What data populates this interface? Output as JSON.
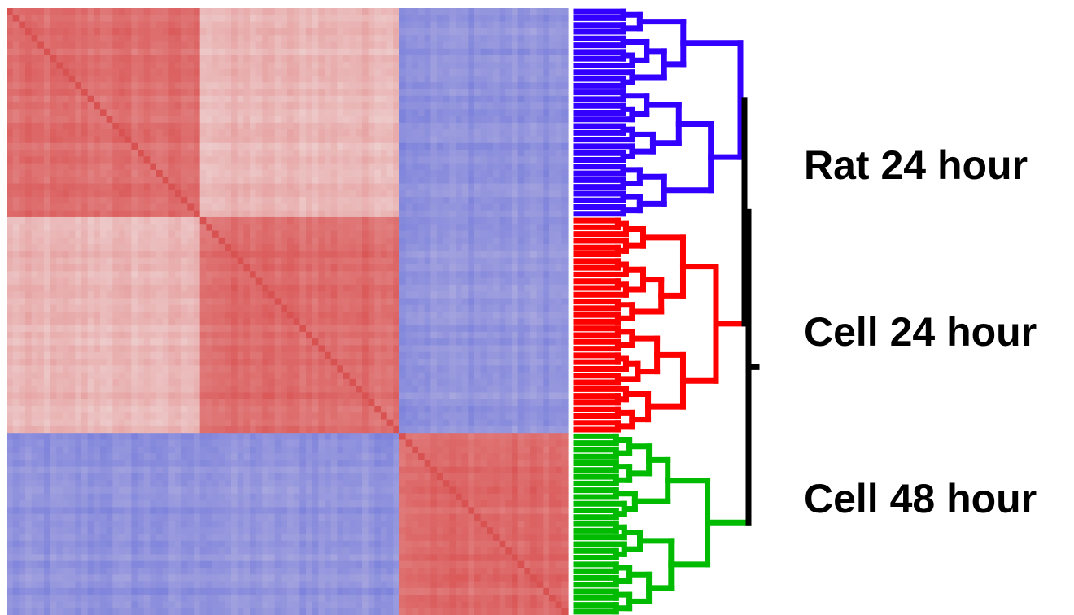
{
  "chart_data": {
    "type": "heatmap",
    "title": "",
    "xlabel": "",
    "ylabel": "",
    "n_samples": 90,
    "colormap": {
      "low": "#5a64d8",
      "mid": "#f2e6e6",
      "high": "#d84a4a"
    },
    "legend": "none",
    "groups": [
      {
        "name": "Rat 24 hour",
        "size": 31,
        "color": "#3300ff",
        "block_correlation": {
          "Rat 24 hour": 0.75,
          "Cell 24 hour": 0.3,
          "Cell 48 hour": -0.65
        }
      },
      {
        "name": "Cell 24 hour",
        "size": 32,
        "color": "#ff0000",
        "block_correlation": {
          "Rat 24 hour": 0.3,
          "Cell 24 hour": 0.78,
          "Cell 48 hour": -0.62
        }
      },
      {
        "name": "Cell 48 hour",
        "size": 27,
        "color": "#00bb00",
        "block_correlation": {
          "Rat 24 hour": -0.65,
          "Cell 24 hour": -0.62,
          "Cell 48 hour": 0.8
        }
      }
    ],
    "dendrogram": {
      "top_merge": [
        "Rat 24 hour",
        "Cell 24 hour"
      ],
      "top_color": "#000000"
    }
  }
}
